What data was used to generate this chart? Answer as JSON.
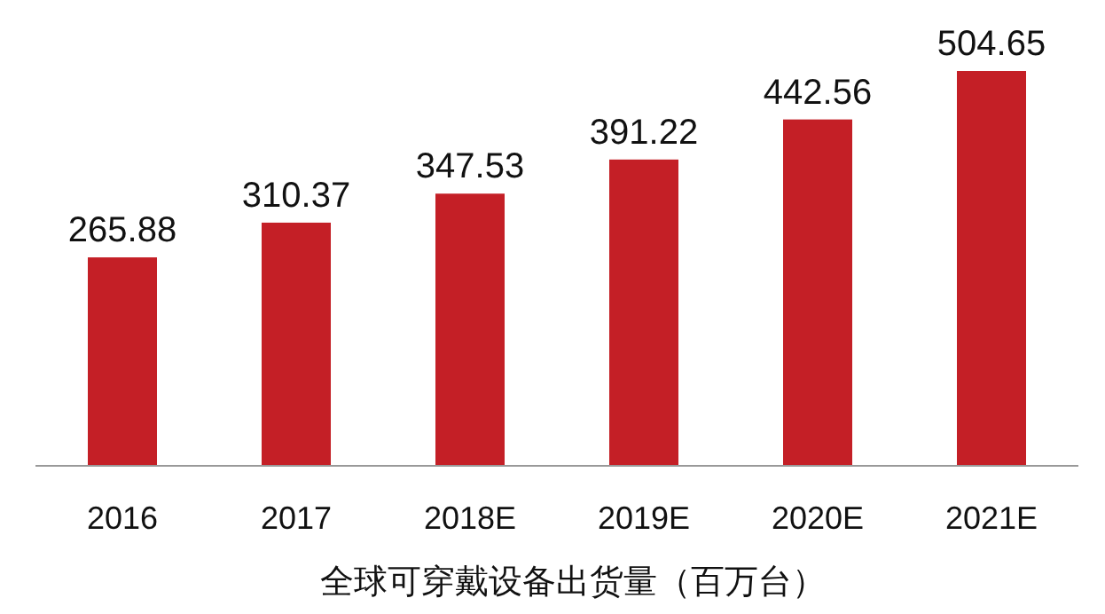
{
  "chart_data": {
    "type": "bar",
    "xlabel": "全球可穿戴设备出货量（百万台）",
    "categories": [
      "2016",
      "2017",
      "2018E",
      "2019E",
      "2020E",
      "2021E"
    ],
    "values": [
      265.88,
      310.37,
      347.53,
      391.22,
      442.56,
      504.65
    ],
    "color": "#c41f26",
    "data_labels": true
  }
}
